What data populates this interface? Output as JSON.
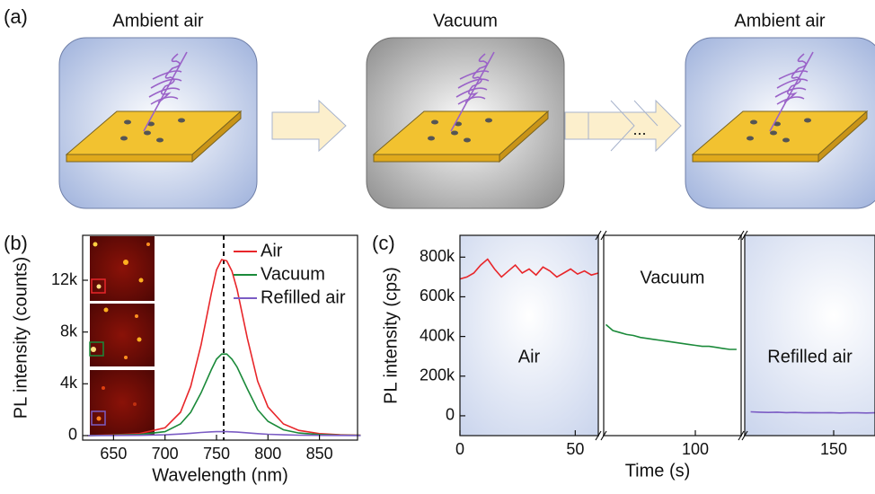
{
  "panel_a": {
    "label": "(a)",
    "stages": [
      "Ambient air",
      "Vacuum",
      "Ambient air"
    ],
    "ellipsis": "..."
  },
  "chart_data": [
    {
      "type": "line",
      "panel": "(b)",
      "xlabel": "Wavelength (nm)",
      "ylabel": "PL intensity (counts)",
      "xlim": [
        620,
        887
      ],
      "ylim": [
        -350,
        15470
      ],
      "xticks": [
        650,
        700,
        750,
        800,
        850
      ],
      "yticks": [
        0,
        {
          "value": 4000,
          "label": "4k"
        },
        {
          "value": 8000,
          "label": "8k"
        },
        {
          "value": 12000,
          "label": "12k"
        }
      ],
      "peak_line": 757,
      "x": [
        625,
        650,
        675,
        700,
        715,
        725,
        735,
        745,
        750,
        755,
        760,
        765,
        770,
        780,
        790,
        800,
        815,
        830,
        850,
        870,
        890
      ],
      "legend": "upper right",
      "series": [
        {
          "name": "Air",
          "color": "#e8262a",
          "values": [
            0,
            50,
            150,
            600,
            1800,
            3800,
            7000,
            11000,
            12800,
            13600,
            13500,
            12700,
            11300,
            7500,
            4200,
            2200,
            900,
            400,
            150,
            60,
            30
          ]
        },
        {
          "name": "Vacuum",
          "color": "#1b8a3a",
          "values": [
            0,
            30,
            80,
            300,
            900,
            1800,
            3300,
            5100,
            5900,
            6300,
            6300,
            5900,
            5300,
            3600,
            2000,
            1100,
            450,
            200,
            80,
            30,
            15
          ]
        },
        {
          "name": "Refilled air",
          "color": "#7b5cc4",
          "values": [
            0,
            10,
            20,
            60,
            120,
            180,
            240,
            290,
            300,
            310,
            300,
            290,
            270,
            210,
            150,
            100,
            60,
            30,
            20,
            10,
            5
          ]
        }
      ]
    },
    {
      "type": "line",
      "panel": "(c)",
      "xlabel": "Time (s)",
      "ylabel": "PL intensity (cps)",
      "xlim": [
        0,
        180
      ],
      "segments": [
        [
          0,
          60
        ],
        [
          60,
          120
        ],
        [
          120,
          180
        ]
      ],
      "segment_labels": [
        "Air",
        "Vacuum",
        "Refilled air"
      ],
      "ylim": [
        -100000,
        910000
      ],
      "xticks": [
        0,
        50,
        100,
        150
      ],
      "yticks": [
        0,
        {
          "value": 200000,
          "label": "200k"
        },
        {
          "value": 400000,
          "label": "400k"
        },
        {
          "value": 600000,
          "label": "600k"
        },
        {
          "value": 800000,
          "label": "800k"
        }
      ],
      "series": [
        {
          "name": "Air",
          "color": "#e8262a",
          "x": [
            0,
            3,
            6,
            9,
            12,
            15,
            18,
            21,
            24,
            27,
            30,
            33,
            36,
            39,
            42,
            45,
            48,
            51,
            54,
            57,
            60
          ],
          "values": [
            690000,
            700000,
            720000,
            760000,
            790000,
            740000,
            700000,
            730000,
            760000,
            720000,
            740000,
            710000,
            750000,
            730000,
            700000,
            720000,
            740000,
            715000,
            730000,
            710000,
            720000
          ]
        },
        {
          "name": "Vacuum",
          "color": "#1b8a3a",
          "x": [
            61,
            64,
            67,
            70,
            73,
            76,
            79,
            82,
            85,
            88,
            91,
            94,
            97,
            100,
            103,
            106,
            109,
            112,
            115,
            118
          ],
          "values": [
            460000,
            430000,
            420000,
            410000,
            405000,
            395000,
            390000,
            385000,
            380000,
            375000,
            370000,
            365000,
            360000,
            355000,
            350000,
            350000,
            345000,
            340000,
            335000,
            335000
          ]
        },
        {
          "name": "Refilled air",
          "color": "#7b5cc4",
          "x": [
            122,
            125,
            128,
            131,
            134,
            137,
            140,
            143,
            146,
            149,
            152,
            155,
            158,
            161,
            164,
            167,
            170,
            173,
            176,
            179
          ],
          "values": [
            20000,
            18000,
            17000,
            18000,
            16000,
            17000,
            15000,
            16000,
            15000,
            16000,
            14000,
            15000,
            15000,
            14000,
            15000,
            14000,
            14000,
            15000,
            14000,
            14000
          ]
        }
      ]
    }
  ]
}
